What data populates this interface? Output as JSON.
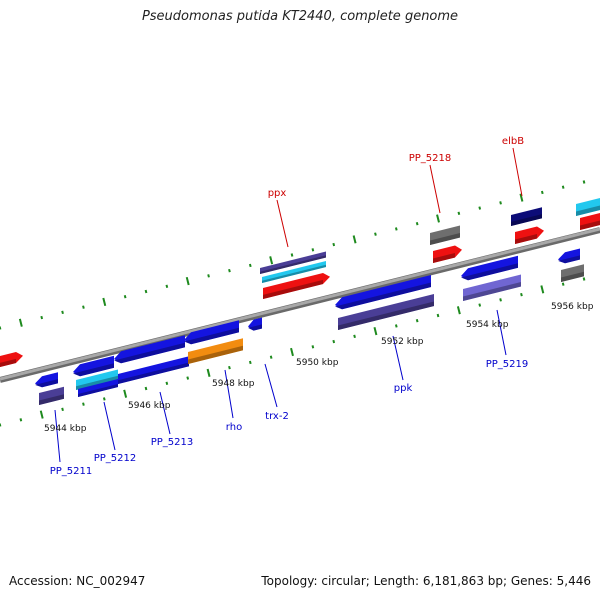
{
  "title": "Pseudomonas putida KT2440, complete genome",
  "footer": {
    "accession": "Accession: NC_002947",
    "summary": "Topology: circular; Length: 6,181,863 bp; Genes: 5,446"
  },
  "colors": {
    "backbone": "#8a8a8a",
    "tick": "#1e8a1e",
    "label_top": "#cc0000",
    "label_bottom": "#0000cc",
    "gene_blue": "#1414e0",
    "gene_red": "#ee1111",
    "gene_cyan": "#22c8ee",
    "gene_navy": "#0c0c78",
    "gene_indigo": "#4a3e96",
    "gene_gray": "#6e6e6e",
    "gene_orange": "#f28c10",
    "gene_lavender": "#7066d2"
  },
  "ticks": [
    {
      "label": "5944 kbp"
    },
    {
      "label": "5946 kbp"
    },
    {
      "label": "5948 kbp"
    },
    {
      "label": "5950 kbp"
    },
    {
      "label": "5952 kbp"
    },
    {
      "label": "5954 kbp"
    },
    {
      "label": "5956 kbp"
    }
  ],
  "gene_labels_top": [
    {
      "name": "ppx"
    },
    {
      "name": "PP_5218"
    },
    {
      "name": "elbB"
    }
  ],
  "gene_labels_bottom": [
    {
      "name": "PP_5211"
    },
    {
      "name": "PP_5212"
    },
    {
      "name": "PP_5213"
    },
    {
      "name": "rho"
    },
    {
      "name": "trx-2"
    },
    {
      "name": "ppk"
    },
    {
      "name": "PP_5219"
    }
  ]
}
